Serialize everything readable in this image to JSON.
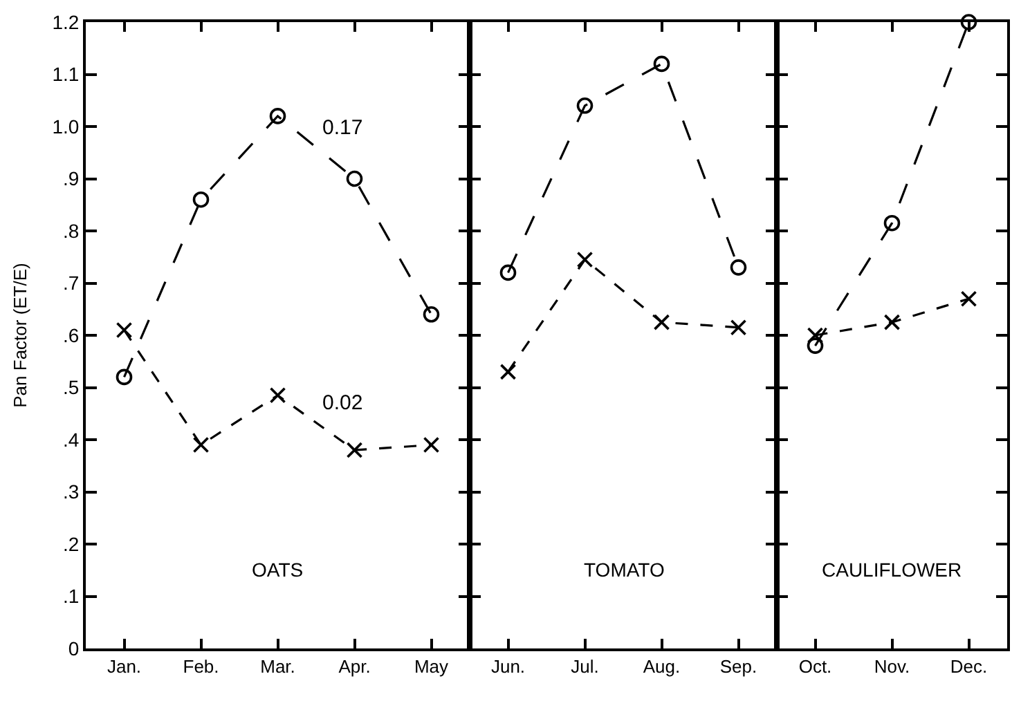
{
  "chart_data": [
    {
      "type": "line",
      "ylabel": "Pan Factor (ET/E)",
      "categories": [
        "Jan.",
        "Feb.",
        "Mar.",
        "Apr.",
        "May"
      ],
      "series": [
        {
          "color": "#000000",
          "marker": "circle",
          "line_style": "dashed",
          "values": [
            0.52,
            0.86,
            1.02,
            0.9,
            0.64
          ]
        },
        {
          "color": "#000000",
          "marker": "cross",
          "line_style": "dotted",
          "values": [
            0.61,
            0.39,
            0.485,
            0.38,
            0.39
          ]
        }
      ],
      "ylim": [
        0,
        1.2
      ],
      "yticks": [
        0,
        {
          "value": 0.1,
          "label": ".1"
        },
        {
          "value": 0.2,
          "label": ".2"
        },
        {
          "value": 0.3,
          "label": ".3"
        },
        {
          "value": 0.4,
          "label": ".4"
        },
        {
          "value": 0.5,
          "label": ".5"
        },
        {
          "value": 0.6,
          "label": ".6"
        },
        {
          "value": 0.7,
          "label": ".7"
        },
        {
          "value": 0.8,
          "label": ".8"
        },
        {
          "value": 0.9,
          "label": ".9"
        },
        {
          "value": 1.0,
          "label": "1.0"
        },
        {
          "value": 1.1,
          "label": "1.1"
        },
        {
          "value": 1.2,
          "label": "1.2"
        }
      ],
      "annotations": [
        "OATS",
        "0.17",
        "0.02"
      ]
    },
    {
      "type": "line",
      "categories": [
        "Jun.",
        "Jul.",
        "Aug.",
        "Sep."
      ],
      "yticks": [
        {
          "value": 0,
          "label": null
        },
        {
          "value": 0.1,
          "label": null
        },
        {
          "value": 0.2,
          "label": null
        },
        {
          "value": 0.3,
          "label": null
        },
        {
          "value": 0.4,
          "label": null
        },
        {
          "value": 0.5,
          "label": null
        },
        {
          "value": 0.6,
          "label": null
        },
        {
          "value": 0.7,
          "label": null
        },
        {
          "value": 0.8,
          "label": null
        },
        {
          "value": 0.9,
          "label": null
        },
        {
          "value": 1.0,
          "label": null
        },
        {
          "value": 1.1,
          "label": null
        },
        {
          "value": 1.2,
          "label": null
        }
      ],
      "series": [
        {
          "color": "#000000",
          "marker": "circle",
          "line_style": "dashed",
          "values": [
            0.72,
            1.04,
            1.12,
            0.73
          ]
        },
        {
          "color": "#000000",
          "marker": "cross",
          "line_style": "dotted",
          "values": [
            0.53,
            0.745,
            0.625,
            0.615
          ]
        }
      ],
      "ylim": [
        0,
        1.2
      ],
      "tick_labels": "x",
      "annotations": [
        "TOMATO"
      ]
    },
    {
      "type": "line",
      "categories": [
        "Oct.",
        "Nov.",
        "Dec."
      ],
      "yticks": [
        {
          "value": 0,
          "label": null
        },
        {
          "value": 0.1,
          "label": null
        },
        {
          "value": 0.2,
          "label": null
        },
        {
          "value": 0.3,
          "label": null
        },
        {
          "value": 0.4,
          "label": null
        },
        {
          "value": 0.5,
          "label": null
        },
        {
          "value": 0.6,
          "label": null
        },
        {
          "value": 0.7,
          "label": null
        },
        {
          "value": 0.8,
          "label": null
        },
        {
          "value": 0.9,
          "label": null
        },
        {
          "value": 1.0,
          "label": null
        },
        {
          "value": 1.1,
          "label": null
        },
        {
          "value": 1.2,
          "label": null
        }
      ],
      "series": [
        {
          "color": "#000000",
          "marker": "circle",
          "line_style": "dashed",
          "values": [
            0.58,
            0.815,
            1.2
          ]
        },
        {
          "color": "#000000",
          "marker": "cross",
          "line_style": "dotted",
          "values": [
            0.6,
            0.625,
            0.67
          ]
        }
      ],
      "ylim": [
        0,
        1.2
      ],
      "tick_labels": "x",
      "annotations": [
        "CAULIFLOWER"
      ]
    }
  ]
}
